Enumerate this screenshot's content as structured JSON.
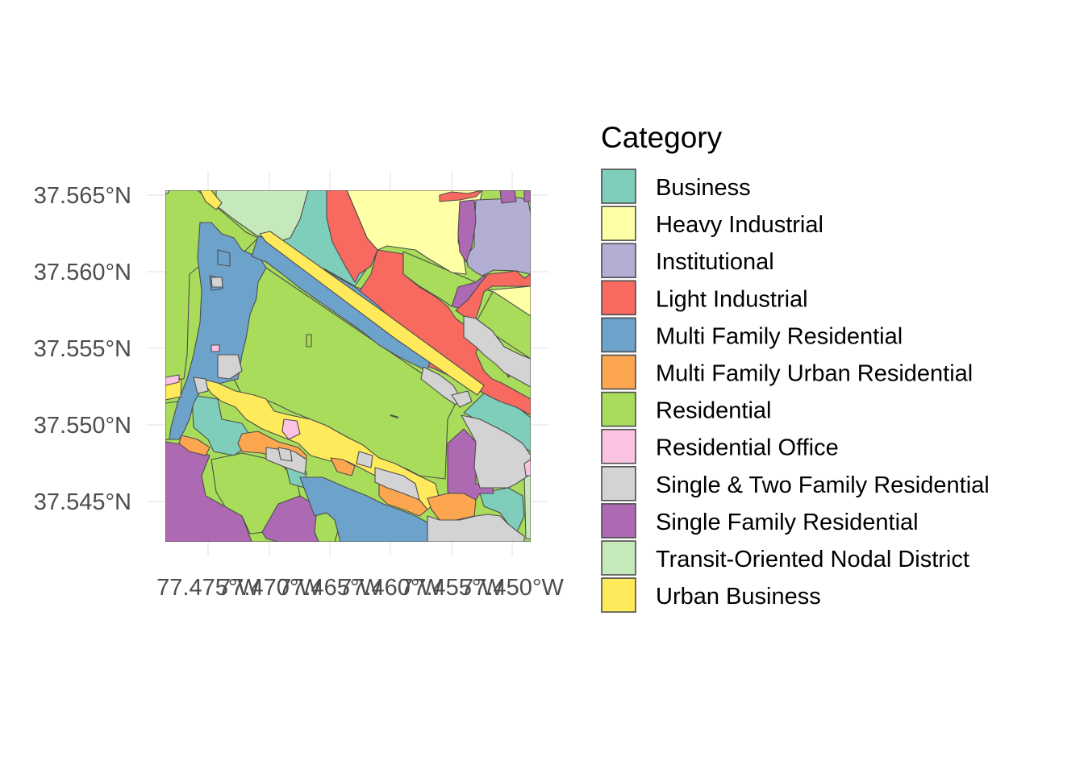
{
  "chart_data": {
    "type": "choropleth",
    "legend_title": "Category",
    "legend_placement": "right",
    "grid": true,
    "x_ticks": [
      "77.475°W",
      "77.470°W",
      "77.465°W",
      "77.460°W",
      "77.455°W",
      "77.450°W"
    ],
    "y_ticks": [
      "37.565°N",
      "37.560°N",
      "37.555°N",
      "37.550°N",
      "37.545°N"
    ],
    "categories": [
      {
        "name": "Business",
        "color": "#7FCDBB"
      },
      {
        "name": "Heavy Industrial",
        "color": "#FFFFA6"
      },
      {
        "name": "Institutional",
        "color": "#B3AED3"
      },
      {
        "name": "Light Industrial",
        "color": "#F8695F"
      },
      {
        "name": "Multi Family Residential",
        "color": "#6DA2CB"
      },
      {
        "name": "Multi Family Urban Residential",
        "color": "#FDA650"
      },
      {
        "name": "Residential",
        "color": "#A8DC5A"
      },
      {
        "name": "Residential Office",
        "color": "#F9C3E1"
      },
      {
        "name": "Single & Two Family Residential",
        "color": "#D3D3D3"
      },
      {
        "name": "Single Family Residential",
        "color": "#AE69B3"
      },
      {
        "name": "Transit-Oriented Nodal District",
        "color": "#C5E9BB"
      },
      {
        "name": "Urban Business",
        "color": "#FEEA5A"
      }
    ]
  }
}
